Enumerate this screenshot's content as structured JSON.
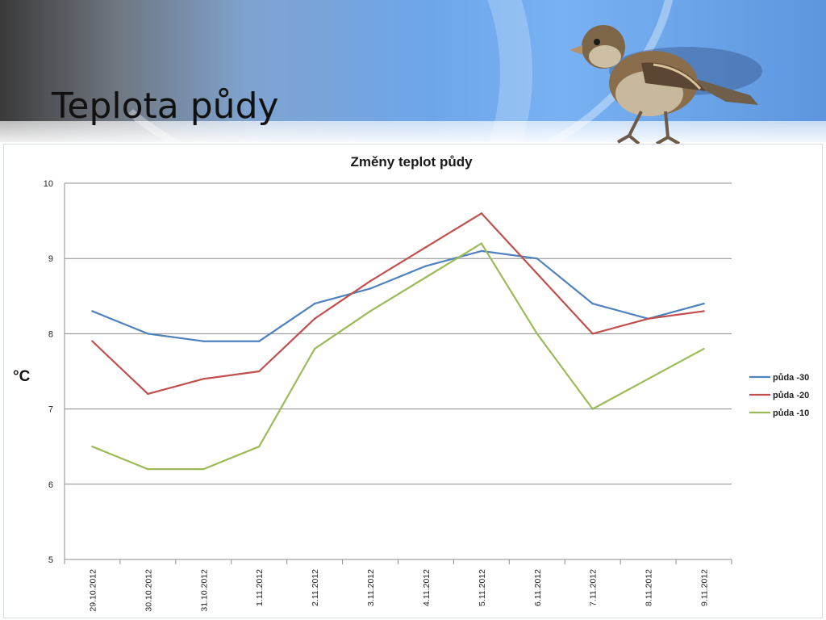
{
  "slide": {
    "title": "Teplota půdy"
  },
  "colors": {
    "series_30": "#4f81bd",
    "series_20": "#c0504d",
    "series_10": "#9bbb59",
    "grid": "#8c8c8c"
  },
  "chart_data": {
    "type": "line",
    "title": "Změny teplot půdy",
    "xlabel": "",
    "ylabel": "°C",
    "ylim": [
      5,
      10
    ],
    "yticks": [
      5,
      6,
      7,
      8,
      9,
      10
    ],
    "grid": true,
    "legend_position": "right",
    "categories": [
      "29.10.2012",
      "30.10.2012",
      "31.10.2012",
      "1.11.2012",
      "2.11.2012",
      "3.11.2012",
      "4.11.2012",
      "5.11.2012",
      "6.11.2012",
      "7.11.2012",
      "8.11.2012",
      "9.11.2012"
    ],
    "series": [
      {
        "name": "půda -30",
        "values": [
          8.3,
          8.0,
          7.9,
          7.9,
          8.4,
          8.6,
          8.9,
          9.1,
          9.0,
          8.4,
          8.2,
          8.4
        ]
      },
      {
        "name": "půda -20",
        "values": [
          7.9,
          7.2,
          7.4,
          7.5,
          8.2,
          8.7,
          9.15,
          9.6,
          8.8,
          8.0,
          8.2,
          8.3
        ]
      },
      {
        "name": "půda -10",
        "values": [
          6.5,
          6.2,
          6.2,
          6.5,
          7.8,
          8.3,
          8.75,
          9.2,
          8.0,
          7.0,
          7.4,
          7.8
        ]
      }
    ]
  }
}
